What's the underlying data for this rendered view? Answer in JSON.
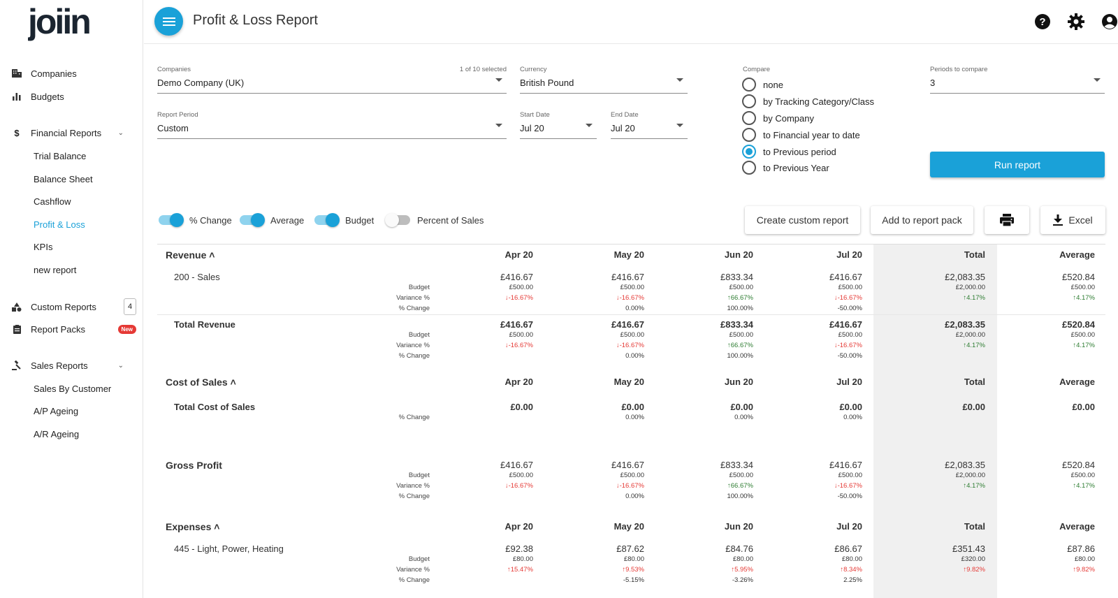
{
  "app": {
    "logo_text": "joiin"
  },
  "sidebar": {
    "items": [
      {
        "label": "Companies",
        "icon": "building-icon"
      },
      {
        "label": "Budgets",
        "icon": "bar-chart-icon"
      },
      {
        "label": "Financial Reports",
        "icon": "dollar-icon"
      },
      {
        "label": "Custom Reports",
        "icon": "shapes-icon",
        "count": "4"
      },
      {
        "label": "Report Packs",
        "icon": "clipboard-icon",
        "badge": "New"
      },
      {
        "label": "Sales Reports",
        "icon": "gavel-icon"
      }
    ],
    "financial_sub": [
      "Trial Balance",
      "Balance Sheet",
      "Cashflow",
      "Profit & Loss",
      "KPIs",
      "new report"
    ],
    "sales_sub": [
      "Sales By Customer",
      "A/P Ageing",
      "A/R Ageing"
    ]
  },
  "header": {
    "title": "Profit & Loss Report"
  },
  "form": {
    "companies": {
      "label": "Companies",
      "value": "Demo Company (UK)",
      "selected": "1 of 10 selected"
    },
    "currency": {
      "label": "Currency",
      "value": "British Pound"
    },
    "report_period": {
      "label": "Report Period",
      "value": "Custom"
    },
    "start_date": {
      "label": "Start Date",
      "value": "Jul 20"
    },
    "end_date": {
      "label": "End Date",
      "value": "Jul 20"
    },
    "compare_label": "Compare",
    "compare_options": [
      "none",
      "by Tracking Category/Class",
      "by Company",
      "to Financial year to date",
      "to Previous period",
      "to Previous Year"
    ],
    "compare_selected": "to Previous period",
    "periods": {
      "label": "Periods to compare",
      "value": "3"
    },
    "run_label": "Run report"
  },
  "toggles": [
    {
      "label": "% Change",
      "on": true
    },
    {
      "label": "Average",
      "on": true
    },
    {
      "label": "Budget",
      "on": true
    },
    {
      "label": "Percent of Sales",
      "on": false
    }
  ],
  "actions": {
    "custom": "Create custom report",
    "pack": "Add to report pack",
    "excel": "Excel"
  },
  "columns": [
    "Apr 20",
    "May 20",
    "Jun 20",
    "Jul 20",
    "Total",
    "Average"
  ],
  "labels": {
    "budget": "Budget",
    "variance": "Variance %",
    "change": "% Change"
  },
  "sections": {
    "revenue": "Revenue",
    "cost": "Cost of Sales",
    "gross": "Gross Profit",
    "expenses": "Expenses"
  },
  "rows": {
    "sales": {
      "name": "200 - Sales",
      "values": [
        "£416.67",
        "£416.67",
        "£833.34",
        "£416.67",
        "£2,083.35",
        "£520.84"
      ],
      "budget": [
        "£500.00",
        "£500.00",
        "£500.00",
        "£500.00",
        "£2,000.00",
        "£500.00"
      ],
      "variance": [
        "-16.67%",
        "-16.67%",
        "66.67%",
        "-16.67%",
        "4.17%",
        "4.17%"
      ],
      "change": [
        "",
        "0.00%",
        "100.00%",
        "-50.00%",
        "",
        ""
      ]
    },
    "total_revenue": {
      "name": "Total Revenue",
      "values": [
        "£416.67",
        "£416.67",
        "£833.34",
        "£416.67",
        "£2,083.35",
        "£520.84"
      ],
      "budget": [
        "£500.00",
        "£500.00",
        "£500.00",
        "£500.00",
        "£2,000.00",
        "£500.00"
      ],
      "variance": [
        "-16.67%",
        "-16.67%",
        "66.67%",
        "-16.67%",
        "4.17%",
        "4.17%"
      ],
      "change": [
        "",
        "0.00%",
        "100.00%",
        "-50.00%",
        "",
        ""
      ]
    },
    "total_cost": {
      "name": "Total Cost of Sales",
      "values": [
        "£0.00",
        "£0.00",
        "£0.00",
        "£0.00",
        "£0.00",
        "£0.00"
      ],
      "change": [
        "",
        "0.00%",
        "0.00%",
        "0.00%",
        "",
        ""
      ]
    },
    "gross_profit": {
      "values": [
        "£416.67",
        "£416.67",
        "£833.34",
        "£416.67",
        "£2,083.35",
        "£520.84"
      ],
      "budget": [
        "£500.00",
        "£500.00",
        "£500.00",
        "£500.00",
        "£2,000.00",
        "£500.00"
      ],
      "variance": [
        "-16.67%",
        "-16.67%",
        "66.67%",
        "-16.67%",
        "4.17%",
        "4.17%"
      ],
      "change": [
        "",
        "0.00%",
        "100.00%",
        "-50.00%",
        "",
        ""
      ]
    },
    "light": {
      "name": "445 - Light, Power, Heating",
      "values": [
        "£92.38",
        "£87.62",
        "£84.76",
        "£86.67",
        "£351.43",
        "£87.86"
      ],
      "budget": [
        "£80.00",
        "£80.00",
        "£80.00",
        "£80.00",
        "£320.00",
        "£80.00"
      ],
      "variance": [
        "15.47%",
        "9.53%",
        "5.95%",
        "8.34%",
        "9.82%",
        "9.82%"
      ],
      "change": [
        "",
        "-5.15%",
        "-3.26%",
        "2.25%",
        "",
        ""
      ]
    }
  },
  "colors": {
    "accent": "#1aa1d8",
    "negative": "#e53935",
    "positive": "#2e7d32"
  }
}
